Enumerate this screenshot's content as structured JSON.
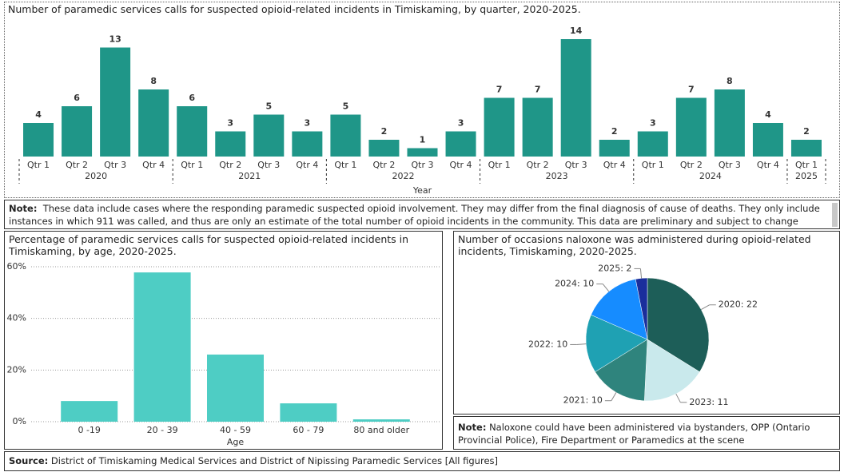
{
  "chart_data": [
    {
      "type": "bar",
      "title": "Number of paramedic services calls for suspected opioid-related incidents in Timiskaming, by quarter, 2020-2025.",
      "x_label": "Year",
      "categories": [
        "Qtr 1",
        "Qtr 2",
        "Qtr 3",
        "Qtr 4",
        "Qtr 1",
        "Qtr 2",
        "Qtr 3",
        "Qtr 4",
        "Qtr 1",
        "Qtr 2",
        "Qtr 3",
        "Qtr 4",
        "Qtr 1",
        "Qtr 2",
        "Qtr 3",
        "Qtr 4",
        "Qtr 1",
        "Qtr 2",
        "Qtr 3",
        "Qtr 4",
        "Qtr 1"
      ],
      "years": [
        "2020",
        "2020",
        "2020",
        "2020",
        "2021",
        "2021",
        "2021",
        "2021",
        "2022",
        "2022",
        "2022",
        "2022",
        "2023",
        "2023",
        "2023",
        "2023",
        "2024",
        "2024",
        "2024",
        "2024",
        "2025"
      ],
      "values": [
        4,
        6,
        13,
        8,
        6,
        3,
        5,
        3,
        5,
        2,
        1,
        3,
        7,
        7,
        14,
        2,
        3,
        7,
        8,
        4,
        2
      ],
      "color": "#1f9688"
    },
    {
      "type": "bar",
      "title": "Percentage of paramedic services calls for suspected opioid-related incidents in Timiskaming, by age, 2020-2025.",
      "x_label": "Age",
      "categories": [
        "0 -19",
        "20 - 39",
        "40 - 59",
        "60 - 79",
        "80 and older"
      ],
      "values": [
        8,
        57.8,
        26,
        7.1,
        0.9
      ],
      "color": "#4ecdc4",
      "ylim": [
        0,
        60
      ],
      "yticks": [
        {
          "value": 0,
          "label": "0%"
        },
        {
          "value": 20,
          "label": "20%"
        },
        {
          "value": 40,
          "label": "40%"
        },
        {
          "value": 60,
          "label": "60%"
        }
      ],
      "grid": true
    },
    {
      "type": "pie",
      "title": "Number of occasions naloxone was administered during opioid-related incidents, Timiskaming, 2020-2025.",
      "values": [
        22,
        11,
        10,
        10,
        10,
        2
      ],
      "value_labels": [
        "2020: 22",
        "2023: 11",
        "2021: 10",
        "2022: 10",
        "2024: 10",
        "2025: 2"
      ],
      "colors": [
        "#1d5e58",
        "#c9e9ec",
        "#2f847d",
        "#1fa1b3",
        "#168cff",
        "#1a2e9c"
      ]
    }
  ],
  "notes": {
    "top": {
      "label": "Note:",
      "text": "These data include cases where the responding paramedic suspected opioid involvement. They may differ from the final diagnosis of cause of deaths. They only include instances in which 911 was called, and thus are only an estimate of the total number of opioid incidents in the community. This data are preliminary and subject to change pending further review."
    },
    "naloxone": {
      "label": "Note:",
      "text": "Naloxone could have been administered via bystanders, OPP (Ontario Provincial Police), Fire Department or Paramedics at the scene"
    }
  },
  "source": {
    "label": "Source:",
    "text": "District of Timiskaming Medical Services and District of Nipissing Paramedic Services [All figures]"
  }
}
